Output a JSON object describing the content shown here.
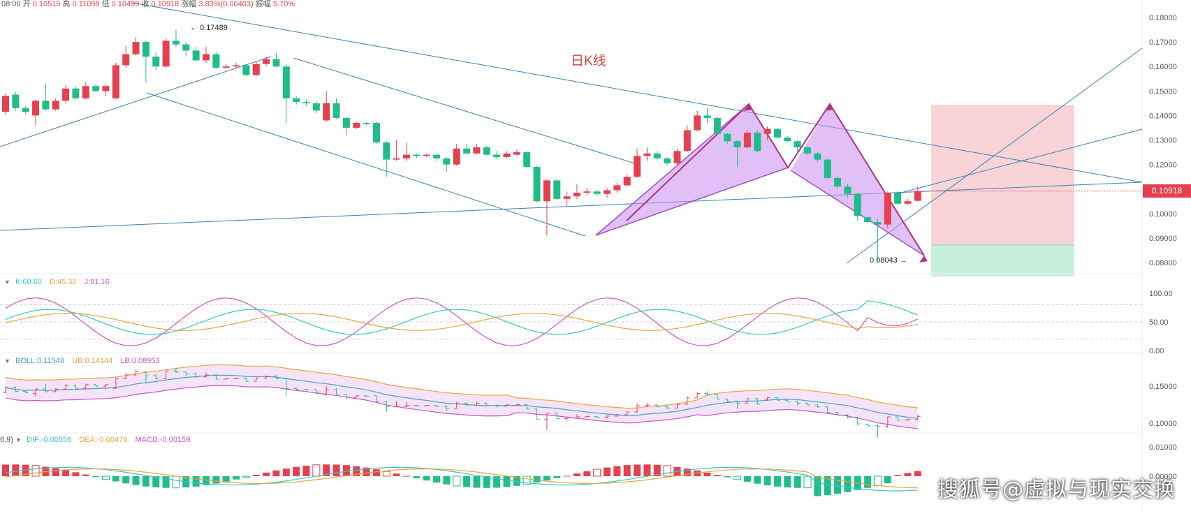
{
  "header": {
    "time": "08:00",
    "open_label": "开",
    "open": "0.10515",
    "high_label": "高",
    "high": "0.11098",
    "low_label": "低",
    "low": "0.10499",
    "close_label": "收",
    "close": "0.10918",
    "change_label": "涨幅",
    "change": "3.83%(0.00403)",
    "amp_label": "振幅",
    "amp": "5.70%"
  },
  "chart_title": "日K线",
  "annotations": {
    "high_mark": "← 0.17489",
    "low_mark": "0.08043 →"
  },
  "current_price": "0.10918",
  "price_axis": [
    "0.18000",
    "0.17000",
    "0.16000",
    "0.15000",
    "0.14000",
    "0.13000",
    "0.12000",
    "0.11000",
    "0.10000",
    "0.09000",
    "0.08000"
  ],
  "kdj": {
    "k_label": "K:60.60",
    "d_label": "D:45.32",
    "j_label": "J:91.16",
    "axis": [
      "100.00",
      "50.00",
      "0.00"
    ]
  },
  "boll": {
    "mid_label": "BOLL:0.11548",
    "ub_label": "UB:0.14144",
    "lb_label": "LB:0.08953",
    "axis": [
      "0.15000",
      "0.10000"
    ]
  },
  "macd": {
    "params": "6,9)",
    "dif_label": "DIF:-0.00556",
    "dea_label": "DEA:-0.00476",
    "macd_label": "MACD:-0.00159",
    "axis": [
      "0.01000",
      "0.00000"
    ]
  },
  "watermark": "搜狐号@虚拟与现实交换",
  "colors": {
    "up": "#e5404f",
    "down": "#1fbd8a",
    "pattern": "#c78df0",
    "pattern_edge": "#b03080",
    "trend": "#3a7fb5"
  },
  "chart_data": {
    "type": "candlestick",
    "candles": [
      [
        0.1415,
        0.148,
        0.1405,
        0.149
      ],
      [
        0.1485,
        0.143,
        0.142,
        0.1495
      ],
      [
        0.143,
        0.1415,
        0.1405,
        0.144
      ],
      [
        0.14,
        0.146,
        0.136,
        0.1465
      ],
      [
        0.146,
        0.1425,
        0.142,
        0.153
      ],
      [
        0.1425,
        0.146,
        0.142,
        0.147
      ],
      [
        0.146,
        0.151,
        0.145,
        0.1525
      ],
      [
        0.151,
        0.147,
        0.1465,
        0.152
      ],
      [
        0.147,
        0.152,
        0.1465,
        0.1535
      ],
      [
        0.152,
        0.15,
        0.1495,
        0.153
      ],
      [
        0.15,
        0.152,
        0.148,
        0.1525
      ],
      [
        0.147,
        0.1605,
        0.1465,
        0.1615
      ],
      [
        0.1605,
        0.165,
        0.1595,
        0.1685
      ],
      [
        0.165,
        0.17,
        0.1645,
        0.172
      ],
      [
        0.17,
        0.164,
        0.1535,
        0.1705
      ],
      [
        0.164,
        0.16,
        0.1585,
        0.166
      ],
      [
        0.16,
        0.1705,
        0.1595,
        0.1715
      ],
      [
        0.1705,
        0.169,
        0.168,
        0.1749
      ],
      [
        0.169,
        0.1665,
        0.164,
        0.17
      ],
      [
        0.1665,
        0.1625,
        0.162,
        0.168
      ],
      [
        0.1625,
        0.165,
        0.1615,
        0.168
      ],
      [
        0.165,
        0.1595,
        0.159,
        0.166
      ],
      [
        0.1595,
        0.16,
        0.159,
        0.161
      ],
      [
        0.16,
        0.1605,
        0.1595,
        0.1615
      ],
      [
        0.1605,
        0.1565,
        0.156,
        0.161
      ],
      [
        0.1565,
        0.161,
        0.156,
        0.162
      ],
      [
        0.161,
        0.163,
        0.16,
        0.164
      ],
      [
        0.163,
        0.16,
        0.1595,
        0.1655
      ],
      [
        0.16,
        0.147,
        0.137,
        0.161
      ],
      [
        0.147,
        0.1455,
        0.1445,
        0.148
      ],
      [
        0.1455,
        0.145,
        0.144,
        0.1465
      ],
      [
        0.145,
        0.142,
        0.141,
        0.146
      ],
      [
        0.138,
        0.145,
        0.1375,
        0.15
      ],
      [
        0.145,
        0.139,
        0.1385,
        0.147
      ],
      [
        0.139,
        0.135,
        0.132,
        0.1395
      ],
      [
        0.135,
        0.137,
        0.1345,
        0.1375
      ],
      [
        0.137,
        0.1365,
        0.136,
        0.1375
      ],
      [
        0.137,
        0.129,
        0.1285,
        0.1375
      ],
      [
        0.129,
        0.122,
        0.115,
        0.1295
      ],
      [
        0.122,
        0.1225,
        0.1215,
        0.13
      ],
      [
        0.1225,
        0.124,
        0.1215,
        0.129
      ],
      [
        0.124,
        0.1235,
        0.1225,
        0.1245
      ],
      [
        0.1235,
        0.124,
        0.123,
        0.1245
      ],
      [
        0.124,
        0.1225,
        0.1215,
        0.1245
      ],
      [
        0.1225,
        0.12,
        0.117,
        0.123
      ],
      [
        0.12,
        0.1265,
        0.1195,
        0.1285
      ],
      [
        0.1265,
        0.1245,
        0.124,
        0.1285
      ],
      [
        0.1245,
        0.127,
        0.124,
        0.1285
      ],
      [
        0.127,
        0.124,
        0.1235,
        0.1275
      ],
      [
        0.124,
        0.123,
        0.122,
        0.1255
      ],
      [
        0.123,
        0.1245,
        0.1225,
        0.1255
      ],
      [
        0.124,
        0.125,
        0.1235,
        0.126
      ],
      [
        0.125,
        0.119,
        0.1185,
        0.1255
      ],
      [
        0.119,
        0.105,
        0.1045,
        0.1195
      ],
      [
        0.105,
        0.1135,
        0.091,
        0.114
      ],
      [
        0.1135,
        0.106,
        0.1055,
        0.114
      ],
      [
        0.106,
        0.107,
        0.103,
        0.109
      ],
      [
        0.107,
        0.1085,
        0.106,
        0.112
      ],
      [
        0.1085,
        0.109,
        0.1075,
        0.1105
      ],
      [
        0.109,
        0.108,
        0.107,
        0.1095
      ],
      [
        0.108,
        0.1095,
        0.1065,
        0.1105
      ],
      [
        0.1095,
        0.1115,
        0.1085,
        0.1125
      ],
      [
        0.1115,
        0.115,
        0.111,
        0.116
      ],
      [
        0.115,
        0.1235,
        0.1145,
        0.1265
      ],
      [
        0.1235,
        0.1245,
        0.1215,
        0.127
      ],
      [
        0.1245,
        0.1225,
        0.1215,
        0.1255
      ],
      [
        0.1225,
        0.1205,
        0.1195,
        0.123
      ],
      [
        0.1205,
        0.1255,
        0.12,
        0.1265
      ],
      [
        0.1255,
        0.134,
        0.125,
        0.136
      ],
      [
        0.134,
        0.14,
        0.1335,
        0.142
      ],
      [
        0.14,
        0.139,
        0.137,
        0.143
      ],
      [
        0.139,
        0.1325,
        0.132,
        0.1395
      ],
      [
        0.1325,
        0.1295,
        0.1285,
        0.133
      ],
      [
        0.1295,
        0.127,
        0.119,
        0.13
      ],
      [
        0.127,
        0.133,
        0.1265,
        0.134
      ],
      [
        0.133,
        0.1255,
        0.125,
        0.134
      ],
      [
        0.1325,
        0.1345,
        0.13,
        0.1355
      ],
      [
        0.1345,
        0.131,
        0.1305,
        0.135
      ],
      [
        0.131,
        0.1295,
        0.129,
        0.1315
      ],
      [
        0.1295,
        0.127,
        0.124,
        0.13
      ],
      [
        0.127,
        0.1245,
        0.124,
        0.1275
      ],
      [
        0.1245,
        0.122,
        0.121,
        0.125
      ],
      [
        0.122,
        0.1145,
        0.114,
        0.1225
      ],
      [
        0.1145,
        0.111,
        0.11,
        0.115
      ],
      [
        0.111,
        0.108,
        0.1065,
        0.112
      ],
      [
        0.108,
        0.099,
        0.097,
        0.1085
      ],
      [
        0.0985,
        0.0965,
        0.096,
        0.099
      ],
      [
        0.0965,
        0.0955,
        0.0804,
        0.098
      ],
      [
        0.0955,
        0.1085,
        0.094,
        0.109
      ],
      [
        0.1085,
        0.104,
        0.1035,
        0.109
      ],
      [
        0.104,
        0.105,
        0.1035,
        0.106
      ],
      [
        0.1052,
        0.1092,
        0.105,
        0.111
      ]
    ]
  }
}
